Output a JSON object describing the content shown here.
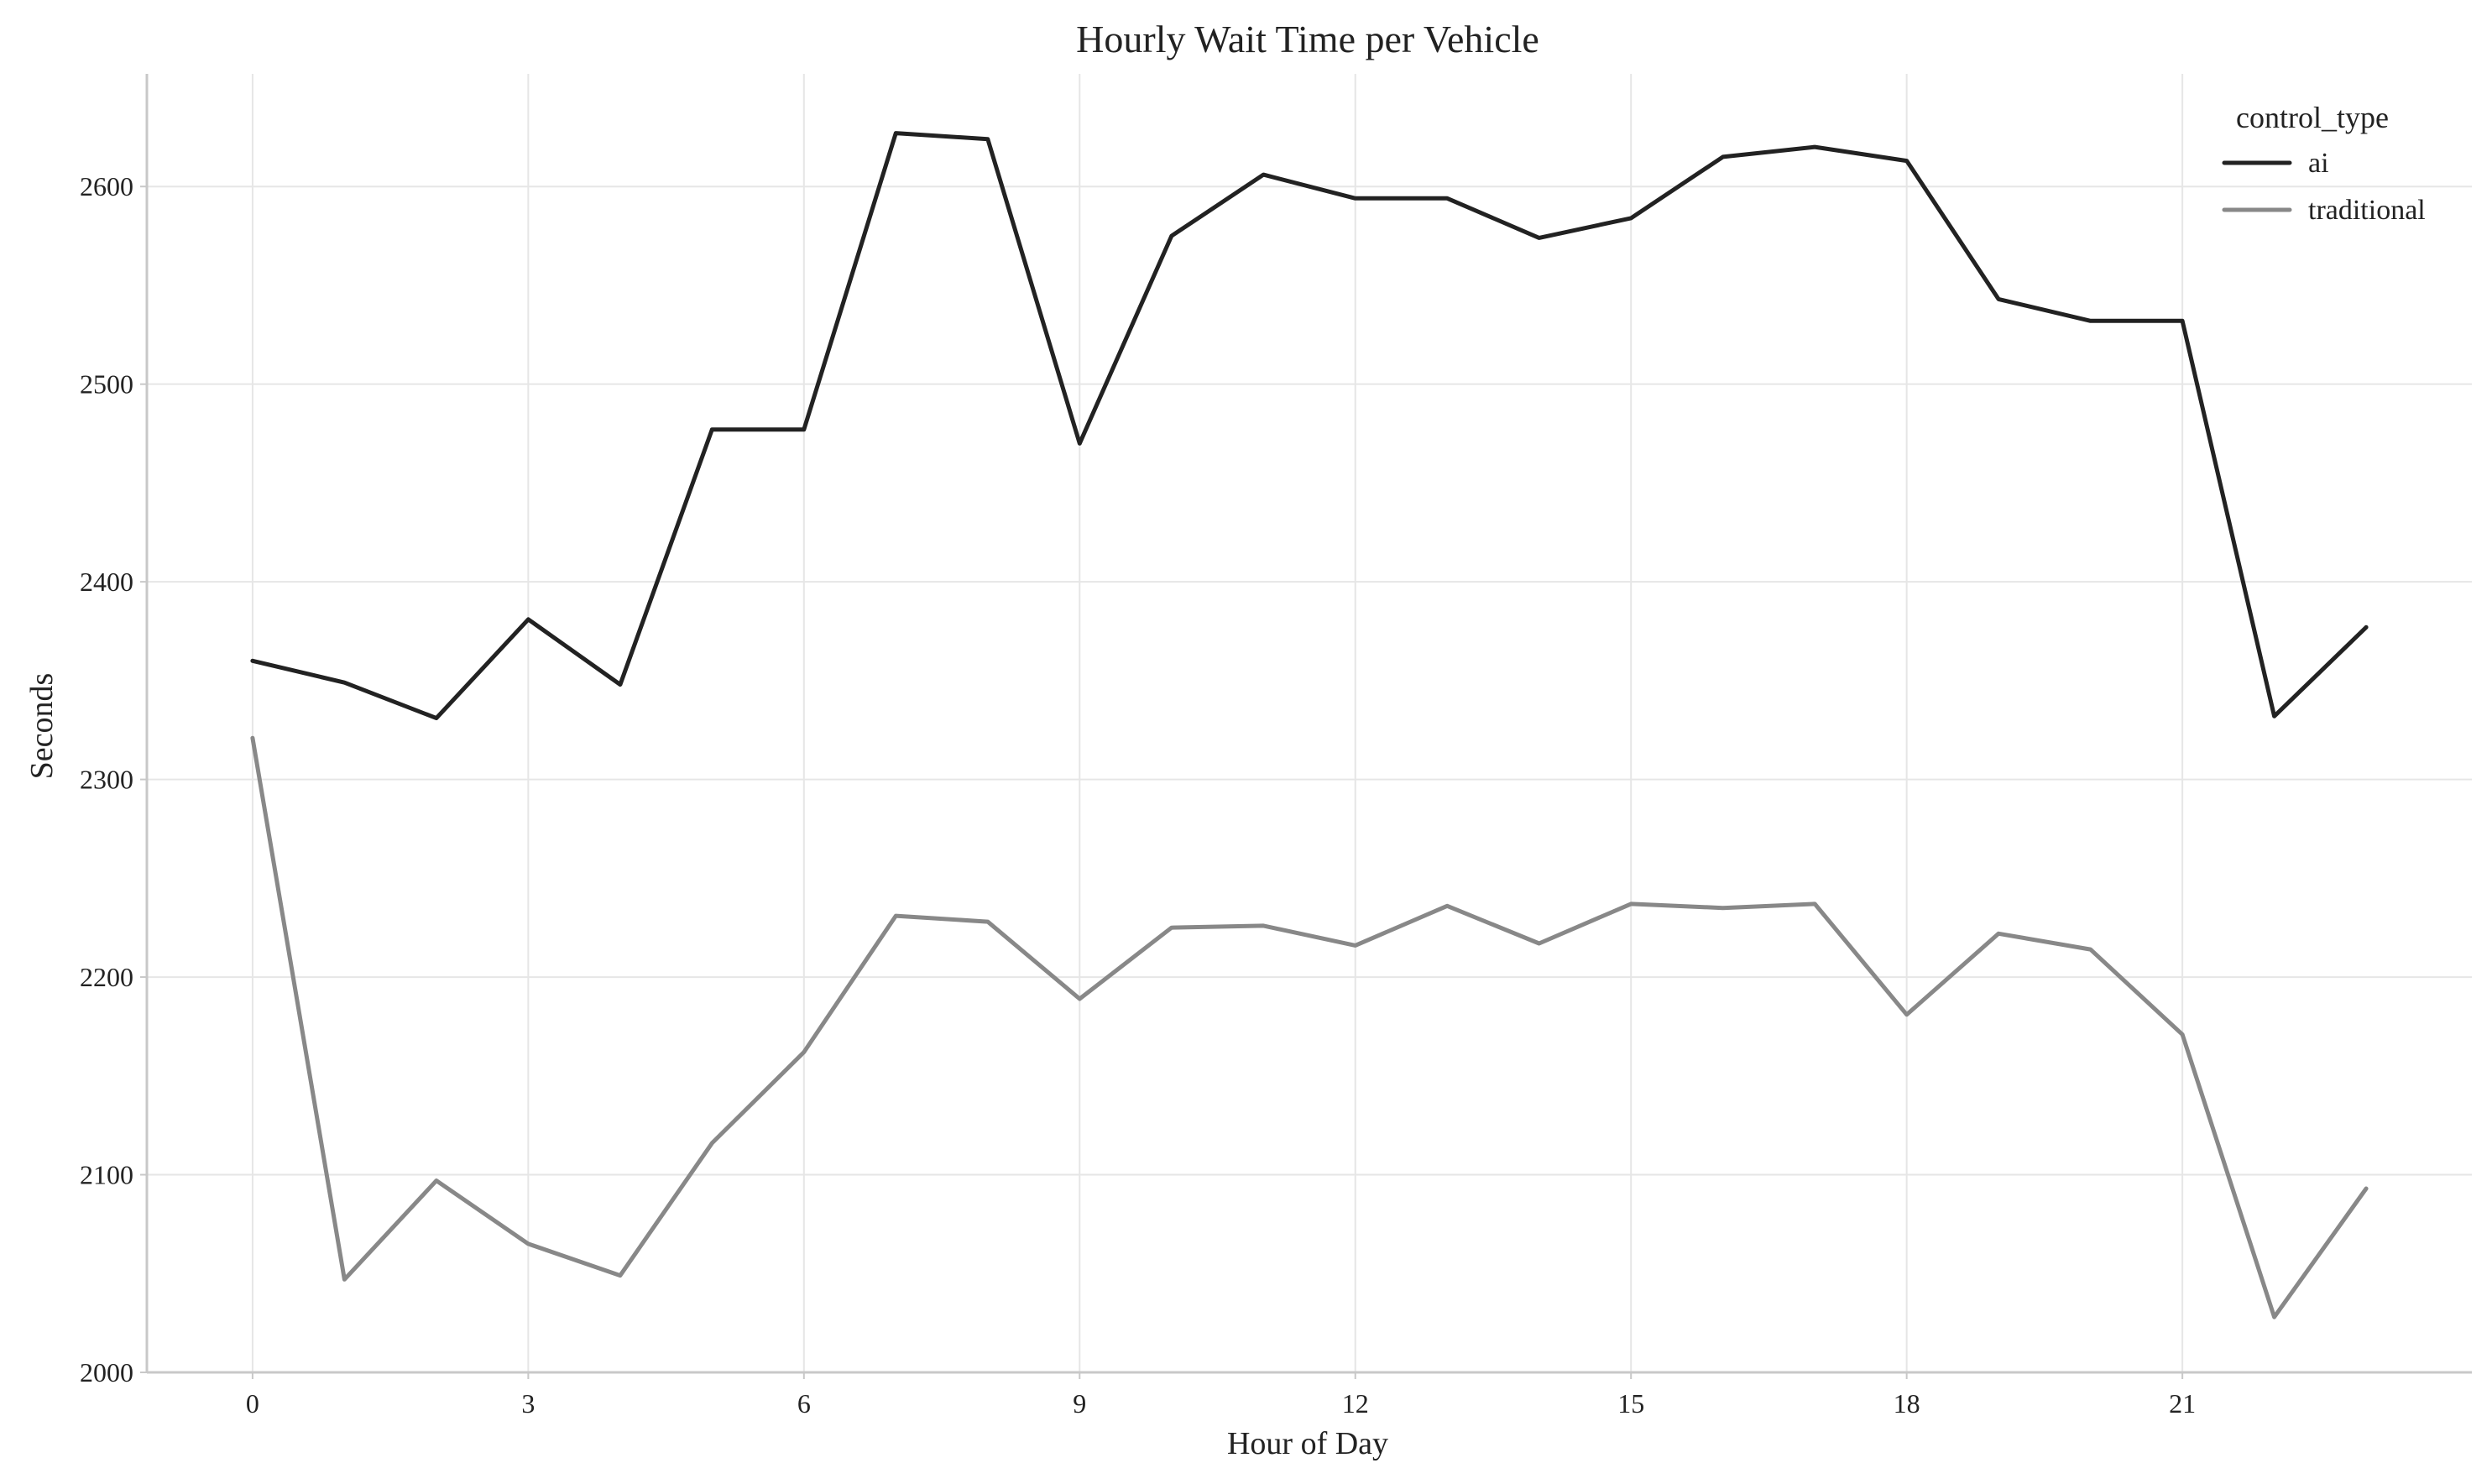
{
  "chart_data": {
    "type": "line",
    "title": "Hourly Wait Time per Vehicle",
    "xlabel": "Hour of Day",
    "ylabel": "Seconds",
    "x": [
      0,
      1,
      2,
      3,
      4,
      5,
      6,
      7,
      8,
      9,
      10,
      11,
      12,
      13,
      14,
      15,
      16,
      17,
      18,
      19,
      20,
      21,
      22,
      23
    ],
    "xticks": [
      0,
      3,
      6,
      9,
      12,
      15,
      18,
      21
    ],
    "yticks": [
      2000,
      2100,
      2200,
      2300,
      2400,
      2500,
      2600
    ],
    "xlim": [
      -1.15,
      24.15
    ],
    "ylim": [
      2000,
      2657
    ],
    "grid": true,
    "legend": {
      "title": "control_type",
      "placement": "top-right"
    },
    "series": [
      {
        "name": "ai",
        "color": "#222222",
        "values": [
          2360,
          2349,
          2331,
          2381,
          2348,
          2477,
          2477,
          2627,
          2624,
          2470,
          2575,
          2606,
          2594,
          2594,
          2574,
          2584,
          2615,
          2620,
          2613,
          2543,
          2532,
          2532,
          2332,
          2377
        ]
      },
      {
        "name": "traditional",
        "color": "#888888",
        "values": [
          2321,
          2047,
          2097,
          2065,
          2049,
          2116,
          2162,
          2231,
          2228,
          2189,
          2225,
          2226,
          2216,
          2236,
          2217,
          2237,
          2235,
          2237,
          2181,
          2222,
          2214,
          2171,
          2028,
          2093
        ]
      }
    ]
  }
}
